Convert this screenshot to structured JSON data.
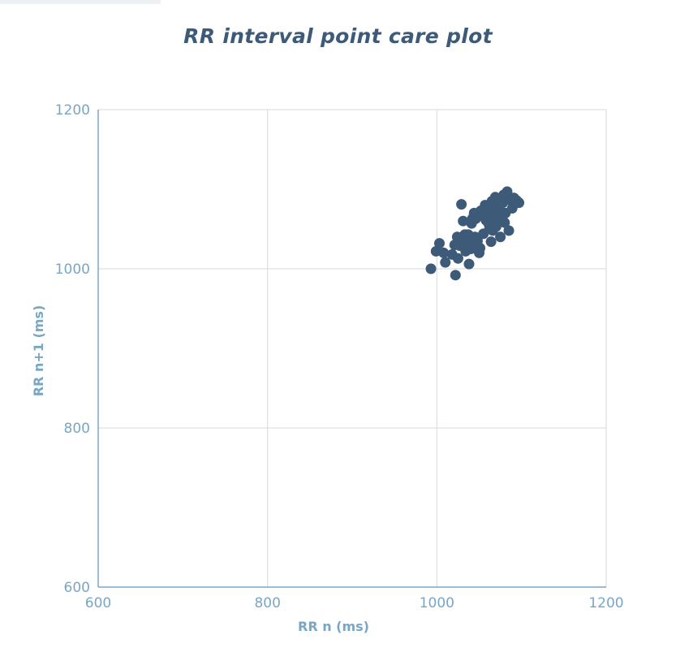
{
  "chart_data": {
    "type": "scatter",
    "title": "RR interval point care plot",
    "xlabel": "RR n (ms)",
    "ylabel": "RR n+1 (ms)",
    "xlim": [
      600,
      1200
    ],
    "ylim": [
      600,
      1200
    ],
    "xticks": [
      600,
      800,
      1000,
      1200
    ],
    "yticks": [
      600,
      800,
      1000,
      1200
    ],
    "grid": true,
    "point_color": "#3d5a78",
    "axis_color": "#7aa6c6",
    "grid_color": "#d7d9dc",
    "points": [
      [
        993,
        1000
      ],
      [
        999,
        1022
      ],
      [
        1003,
        1032
      ],
      [
        1008,
        1020
      ],
      [
        1010,
        1008
      ],
      [
        1018,
        1018
      ],
      [
        1021,
        1030
      ],
      [
        1022,
        992
      ],
      [
        1024,
        1040
      ],
      [
        1025,
        1013
      ],
      [
        1027,
        1029
      ],
      [
        1028,
        1035
      ],
      [
        1029,
        1081
      ],
      [
        1031,
        1060
      ],
      [
        1033,
        1043
      ],
      [
        1034,
        1022
      ],
      [
        1035,
        1028
      ],
      [
        1036,
        1038
      ],
      [
        1038,
        1006
      ],
      [
        1039,
        1032
      ],
      [
        1040,
        1025
      ],
      [
        1041,
        1057
      ],
      [
        1042,
        1063
      ],
      [
        1044,
        1070
      ],
      [
        1045,
        1040
      ],
      [
        1047,
        1030
      ],
      [
        1048,
        1035
      ],
      [
        1050,
        1020
      ],
      [
        1051,
        1026
      ],
      [
        1052,
        1073
      ],
      [
        1054,
        1069
      ],
      [
        1056,
        1065
      ],
      [
        1057,
        1080
      ],
      [
        1058,
        1061
      ],
      [
        1060,
        1075
      ],
      [
        1061,
        1057
      ],
      [
        1063,
        1068
      ],
      [
        1064,
        1034
      ],
      [
        1065,
        1085
      ],
      [
        1066,
        1048
      ],
      [
        1067,
        1062
      ],
      [
        1068,
        1078
      ],
      [
        1070,
        1053
      ],
      [
        1071,
        1066
      ],
      [
        1072,
        1072
      ],
      [
        1074,
        1080
      ],
      [
        1075,
        1040
      ],
      [
        1076,
        1064
      ],
      [
        1078,
        1083
      ],
      [
        1079,
        1093
      ],
      [
        1080,
        1058
      ],
      [
        1081,
        1070
      ],
      [
        1083,
        1097
      ],
      [
        1085,
        1048
      ],
      [
        1086,
        1087
      ],
      [
        1089,
        1076
      ],
      [
        1091,
        1089
      ],
      [
        1094,
        1086
      ],
      [
        1097,
        1083
      ],
      [
        1062,
        1050
      ],
      [
        1046,
        1063
      ],
      [
        1055,
        1044
      ],
      [
        1069,
        1090
      ],
      [
        1037,
        1043
      ]
    ]
  }
}
